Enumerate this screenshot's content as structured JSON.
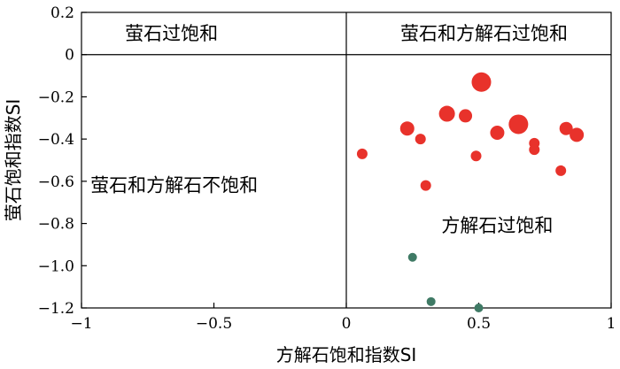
{
  "chart_data": {
    "type": "scatter",
    "xlabel": "方解石饱和指数SI",
    "ylabel": "萤石饱和指数SI",
    "xlim": [
      -1,
      1
    ],
    "ylim": [
      -1.2,
      0.2
    ],
    "x_ticks": [
      -1,
      -0.5,
      0,
      0.5,
      1
    ],
    "x_tick_labels": [
      "−1",
      "−0.5",
      "0",
      "0.5",
      "1"
    ],
    "y_ticks": [
      0.2,
      0,
      -0.2,
      -0.4,
      -0.6,
      -0.8,
      -1.0,
      -1.2
    ],
    "y_tick_labels": [
      "0.2",
      "0",
      "−0.2",
      "−0.4",
      "−0.6",
      "−0.8",
      "−1.0",
      "−1.2"
    ],
    "grid": false,
    "reference_lines": {
      "x": 0,
      "y": 0
    },
    "region_labels": [
      {
        "text": "萤石过饱和",
        "x": -0.66,
        "y": 0.1
      },
      {
        "text": "萤石和方解石过饱和",
        "x": 0.52,
        "y": 0.1
      },
      {
        "text": "萤石和方解石不饱和",
        "x": -0.65,
        "y": -0.62
      },
      {
        "text": "方解石过饱和",
        "x": 0.57,
        "y": -0.81
      }
    ],
    "series": [
      {
        "color": "#e8322b",
        "points": [
          {
            "x": 0.06,
            "y": -0.47,
            "size": 6
          },
          {
            "x": 0.23,
            "y": -0.35,
            "size": 8
          },
          {
            "x": 0.28,
            "y": -0.4,
            "size": 6
          },
          {
            "x": 0.3,
            "y": -0.62,
            "size": 6
          },
          {
            "x": 0.38,
            "y": -0.28,
            "size": 9
          },
          {
            "x": 0.45,
            "y": -0.29,
            "size": 7.5
          },
          {
            "x": 0.49,
            "y": -0.48,
            "size": 6
          },
          {
            "x": 0.51,
            "y": -0.13,
            "size": 11
          },
          {
            "x": 0.57,
            "y": -0.37,
            "size": 8
          },
          {
            "x": 0.65,
            "y": -0.33,
            "size": 11
          },
          {
            "x": 0.71,
            "y": -0.42,
            "size": 6
          },
          {
            "x": 0.71,
            "y": -0.45,
            "size": 6
          },
          {
            "x": 0.81,
            "y": -0.55,
            "size": 6
          },
          {
            "x": 0.83,
            "y": -0.35,
            "size": 7.5
          },
          {
            "x": 0.87,
            "y": -0.38,
            "size": 8
          }
        ]
      },
      {
        "color": "#3f7a65",
        "points": [
          {
            "x": 0.25,
            "y": -0.96,
            "size": 5
          },
          {
            "x": 0.32,
            "y": -1.17,
            "size": 5
          },
          {
            "x": 0.5,
            "y": -1.2,
            "size": 5
          }
        ]
      }
    ]
  }
}
